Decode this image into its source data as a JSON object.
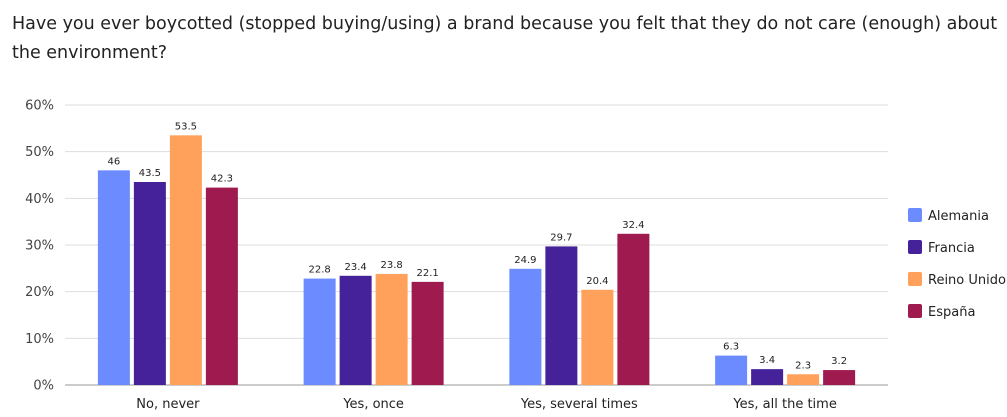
{
  "chart_data": {
    "type": "bar",
    "title": "Have you ever boycotted (stopped buying/using) a brand because you felt that they do not care (enough) about the environment?",
    "xlabel": "",
    "ylabel": "",
    "ylim": [
      0,
      60
    ],
    "yticks": [
      "0%",
      "10%",
      "20%",
      "30%",
      "40%",
      "50%",
      "60%"
    ],
    "grid": true,
    "legend_position": "right",
    "categories": [
      "No, never",
      "Yes, once",
      "Yes, several times",
      "Yes, all the time"
    ],
    "series": [
      {
        "name": "Alemania",
        "color": "#6b8bff",
        "values": [
          46,
          22.8,
          24.9,
          6.3
        ]
      },
      {
        "name": "Francia",
        "color": "#45229a",
        "values": [
          43.5,
          23.4,
          29.7,
          3.4
        ]
      },
      {
        "name": "Reino Unido",
        "color": "#ffa15a",
        "values": [
          53.5,
          23.8,
          20.4,
          2.3
        ]
      },
      {
        "name": "España",
        "color": "#9e1a4f",
        "values": [
          42.3,
          22.1,
          32.4,
          3.2
        ]
      }
    ]
  }
}
